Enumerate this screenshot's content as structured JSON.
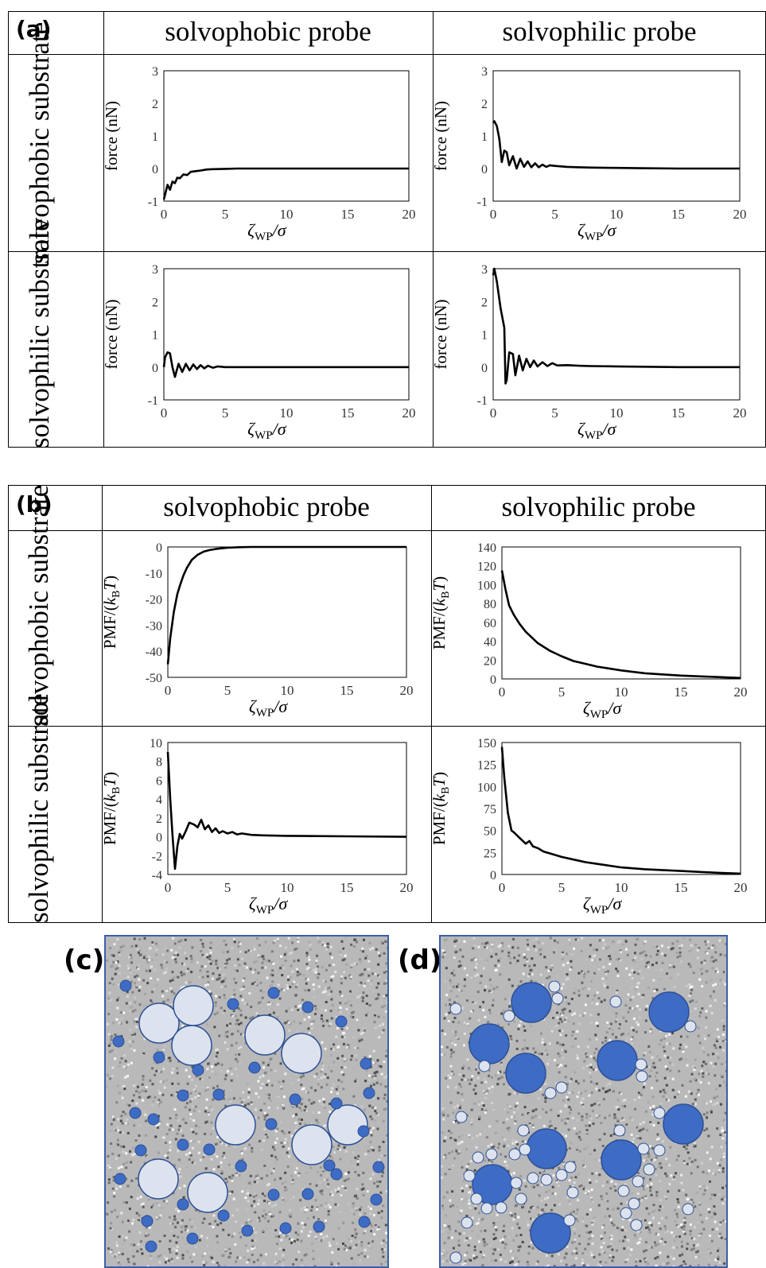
{
  "panel_a": {
    "letter": "(a)",
    "col_titles": [
      "solvophobic probe",
      "solvophilic probe"
    ],
    "row_titles": [
      "solvophobic substrate",
      "solvophilic substrate"
    ]
  },
  "panel_b": {
    "letter": "(b)",
    "col_titles": [
      "solvophobic probe",
      "solvophilic probe"
    ],
    "row_titles": [
      "solvophobic substrate",
      "solvophilic substrate"
    ]
  },
  "panel_c": {
    "letter": "(c)"
  },
  "panel_d": {
    "letter": "(d)"
  },
  "colors": {
    "line": "#000000",
    "dark_particle": "#3e6cc4",
    "light_particle": "#dde3ee",
    "particle_edge": "#2c4f96",
    "frame": "#3a5fa8"
  },
  "chart_data": [
    {
      "id": "a11",
      "type": "line",
      "xlabel": "ζWP/σ",
      "ylabel": "force (nN)",
      "xlim": [
        0,
        20
      ],
      "ylim": [
        -1,
        3
      ],
      "xticks": [
        0,
        5,
        10,
        15,
        20
      ],
      "yticks": [
        -1,
        0,
        1,
        2,
        3
      ],
      "series": [
        {
          "x": [
            0,
            0.1,
            0.3,
            0.5,
            0.7,
            0.9,
            1.1,
            1.3,
            1.6,
            1.9,
            2.2,
            2.6,
            3.0,
            3.5,
            4.0,
            5,
            6,
            8,
            10,
            15,
            20
          ],
          "y": [
            -0.95,
            -0.8,
            -0.5,
            -0.65,
            -0.4,
            -0.45,
            -0.28,
            -0.3,
            -0.18,
            -0.2,
            -0.1,
            -0.08,
            -0.06,
            -0.03,
            -0.02,
            -0.01,
            0,
            0,
            0,
            0,
            0
          ]
        }
      ]
    },
    {
      "id": "a12",
      "type": "line",
      "xlabel": "ζWP/σ",
      "ylabel": "force (nN)",
      "xlim": [
        0,
        20
      ],
      "ylim": [
        -1,
        3
      ],
      "xticks": [
        0,
        5,
        10,
        15,
        20
      ],
      "yticks": [
        -1,
        0,
        1,
        2,
        3
      ],
      "series": [
        {
          "x": [
            0,
            0.1,
            0.3,
            0.5,
            0.7,
            0.9,
            1.1,
            1.3,
            1.6,
            1.9,
            2.2,
            2.5,
            2.8,
            3.1,
            3.4,
            3.7,
            4.0,
            4.3,
            4.6,
            5,
            6,
            7,
            8,
            10,
            12,
            15,
            20
          ],
          "y": [
            1.4,
            1.45,
            1.3,
            0.9,
            0.2,
            0.55,
            0.5,
            0.1,
            0.38,
            0.0,
            0.3,
            0.05,
            0.22,
            0.04,
            0.16,
            0.04,
            0.12,
            0.05,
            0.1,
            0.08,
            0.05,
            0.04,
            0.03,
            0.02,
            0.01,
            0.0,
            0.0
          ]
        }
      ]
    },
    {
      "id": "a21",
      "type": "line",
      "xlabel": "ζWP/σ",
      "ylabel": "force (nN)",
      "xlim": [
        0,
        20
      ],
      "ylim": [
        -1,
        3
      ],
      "xticks": [
        0,
        5,
        10,
        15,
        20
      ],
      "yticks": [
        -1,
        0,
        1,
        2,
        3
      ],
      "series": [
        {
          "x": [
            0,
            0.1,
            0.3,
            0.5,
            0.7,
            0.9,
            1.2,
            1.5,
            1.8,
            2.1,
            2.4,
            2.7,
            3.0,
            3.3,
            3.6,
            4.0,
            4.4,
            5,
            6,
            8,
            10,
            15,
            20
          ],
          "y": [
            0.0,
            0.3,
            0.45,
            0.42,
            0.0,
            -0.3,
            0.1,
            -0.15,
            0.1,
            -0.1,
            0.08,
            -0.06,
            0.06,
            -0.04,
            0.04,
            -0.02,
            0.02,
            0.0,
            0.0,
            0.0,
            0.0,
            0.0,
            0.0
          ]
        }
      ]
    },
    {
      "id": "a22",
      "type": "line",
      "xlabel": "ζWP/σ",
      "ylabel": "force (nN)",
      "xlim": [
        0,
        20
      ],
      "ylim": [
        -1,
        3
      ],
      "xticks": [
        0,
        5,
        10,
        15,
        20
      ],
      "yticks": [
        -1,
        0,
        1,
        2,
        3
      ],
      "series": [
        {
          "x": [
            0,
            0.1,
            0.3,
            0.6,
            0.9,
            1.0,
            1.1,
            1.3,
            1.6,
            1.8,
            2.1,
            2.4,
            2.7,
            3.0,
            3.3,
            3.6,
            4.0,
            4.4,
            4.8,
            5.2,
            6,
            7,
            8,
            10,
            15,
            20
          ],
          "y": [
            2.8,
            3.0,
            2.6,
            1.8,
            1.2,
            -0.5,
            -0.4,
            0.45,
            0.4,
            -0.25,
            0.35,
            -0.1,
            0.25,
            0.0,
            0.2,
            0.02,
            0.15,
            0.03,
            0.12,
            0.05,
            0.06,
            0.04,
            0.03,
            0.02,
            0.0,
            0.0
          ]
        }
      ]
    },
    {
      "id": "b11",
      "type": "line",
      "xlabel": "ζWP/σ",
      "ylabel": "PMF/(kBT)",
      "xlim": [
        0,
        20
      ],
      "ylim": [
        -50,
        0
      ],
      "xticks": [
        0,
        5,
        10,
        15,
        20
      ],
      "yticks": [
        -50,
        -40,
        -30,
        -20,
        -10,
        0
      ],
      "series": [
        {
          "x": [
            0,
            0.2,
            0.5,
            0.8,
            1.0,
            1.3,
            1.6,
            2.0,
            2.5,
            3.0,
            3.5,
            4.0,
            5,
            6,
            7,
            8,
            10,
            15,
            20
          ],
          "y": [
            -45,
            -35,
            -25,
            -18,
            -15,
            -11,
            -8,
            -5,
            -3,
            -1.8,
            -1.2,
            -0.8,
            -0.3,
            -0.1,
            0,
            0,
            0,
            0,
            0
          ]
        }
      ]
    },
    {
      "id": "b12",
      "type": "line",
      "xlabel": "ζWP/σ",
      "ylabel": "PMF/(kBT)",
      "xlim": [
        0,
        20
      ],
      "ylim": [
        0,
        140
      ],
      "xticks": [
        0,
        5,
        10,
        15,
        20
      ],
      "yticks": [
        0,
        20,
        40,
        60,
        80,
        100,
        120,
        140
      ],
      "series": [
        {
          "x": [
            0,
            0.3,
            0.6,
            1.0,
            1.5,
            2.0,
            2.5,
            3.0,
            4.0,
            5,
            6,
            7,
            8,
            10,
            12,
            15,
            18,
            20
          ],
          "y": [
            115,
            95,
            78,
            68,
            58,
            50,
            44,
            38,
            30,
            24,
            19,
            16,
            13,
            9,
            6,
            3.5,
            2,
            1
          ]
        }
      ]
    },
    {
      "id": "b21",
      "type": "line",
      "xlabel": "ζWP/σ",
      "ylabel": "PMF/(kBT)",
      "xlim": [
        0,
        20
      ],
      "ylim": [
        -4,
        10
      ],
      "xticks": [
        0,
        5,
        10,
        15,
        20
      ],
      "yticks": [
        -4,
        -2,
        0,
        2,
        4,
        6,
        8,
        10
      ],
      "series": [
        {
          "x": [
            0,
            0.2,
            0.4,
            0.6,
            0.8,
            1.0,
            1.2,
            1.5,
            1.8,
            2.2,
            2.5,
            2.8,
            3.1,
            3.4,
            3.7,
            4.0,
            4.3,
            4.6,
            5,
            5.4,
            5.8,
            6.2,
            7,
            8,
            10,
            15,
            20
          ],
          "y": [
            9,
            4,
            0,
            -3.4,
            -1,
            0.3,
            -0.2,
            0.6,
            1.5,
            1.3,
            1.0,
            1.8,
            0.8,
            1.2,
            0.5,
            0.9,
            0.4,
            0.6,
            0.35,
            0.5,
            0.25,
            0.35,
            0.2,
            0.15,
            0.1,
            0.05,
            0.0
          ]
        }
      ]
    },
    {
      "id": "b22",
      "type": "line",
      "xlabel": "ζWP/σ",
      "ylabel": "PMF/(kBT)",
      "xlim": [
        0,
        20
      ],
      "ylim": [
        0,
        150
      ],
      "xticks": [
        0,
        5,
        10,
        15,
        20
      ],
      "yticks": [
        0,
        25,
        50,
        75,
        100,
        125,
        150
      ],
      "series": [
        {
          "x": [
            0,
            0.2,
            0.5,
            0.8,
            1.0,
            1.3,
            1.6,
            2.0,
            2.3,
            2.6,
            3.0,
            3.5,
            4.0,
            5,
            6,
            7,
            8,
            10,
            12,
            15,
            18,
            20
          ],
          "y": [
            145,
            110,
            70,
            50,
            48,
            44,
            40,
            35,
            38,
            32,
            30,
            26,
            24,
            20,
            17,
            14,
            12,
            8,
            6,
            4,
            2,
            1
          ]
        }
      ]
    }
  ]
}
